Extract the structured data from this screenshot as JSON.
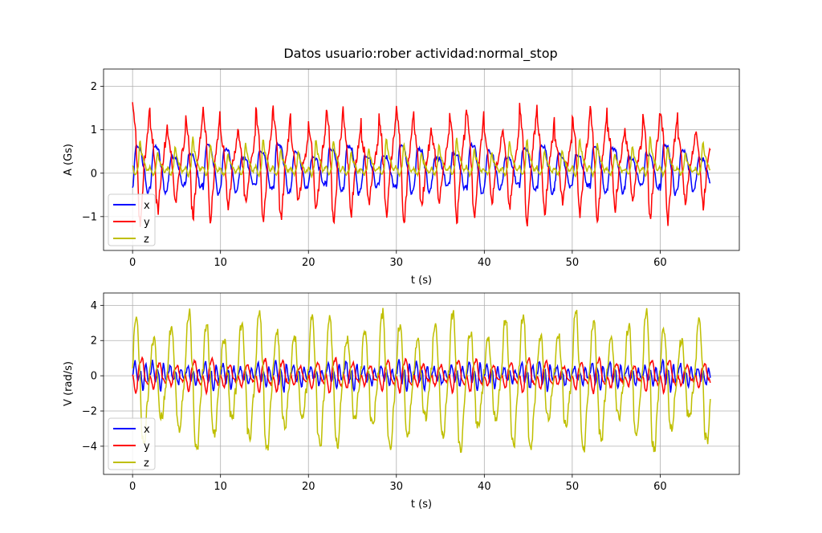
{
  "title": "Datos usuario:rober actividad:normal_stop",
  "colors": {
    "x": "#0000ff",
    "y": "#ff0000",
    "z": "#bfbf00",
    "grid": "#b0b0b0"
  },
  "chart_data": [
    {
      "type": "line",
      "title": "Datos usuario:rober actividad:normal_stop",
      "xlabel": "t (s)",
      "ylabel": "A (Gs)",
      "xlim": [
        -3.3,
        69.0
      ],
      "ylim": [
        -1.78,
        2.4
      ],
      "xticks": [
        0,
        10,
        20,
        30,
        40,
        50,
        60
      ],
      "yticks": [
        -1,
        0,
        1,
        2
      ],
      "grid": true,
      "legend": "lower-left",
      "t_range": [
        0,
        65.7
      ],
      "period_s": 2.0,
      "series": [
        {
          "name": "x",
          "color": "#0000ff",
          "description_range": [
            -0.55,
            0.95
          ],
          "control": [
            [
              0,
              -0.35
            ],
            [
              0.4,
              0.6
            ],
            [
              0.9,
              0.55
            ],
            [
              1.3,
              0.1
            ],
            [
              1.7,
              -0.45
            ],
            [
              2.0,
              -0.35
            ]
          ]
        },
        {
          "name": "y",
          "color": "#ff0000",
          "description_range": [
            -1.3,
            2.17
          ],
          "control": [
            [
              0,
              1.4
            ],
            [
              0.3,
              0.95
            ],
            [
              0.55,
              0.15
            ],
            [
              0.75,
              -0.85
            ],
            [
              0.9,
              -1.1
            ],
            [
              1.1,
              -0.5
            ],
            [
              1.4,
              0.3
            ],
            [
              1.7,
              0.8
            ],
            [
              2.0,
              1.4
            ]
          ]
        },
        {
          "name": "z",
          "color": "#bfbf00",
          "description_range": [
            -0.2,
            0.9
          ],
          "control": [
            [
              0,
              0.15
            ],
            [
              0.35,
              -0.05
            ],
            [
              0.6,
              0.1
            ],
            [
              0.85,
              0.75
            ],
            [
              1.05,
              0.45
            ],
            [
              1.35,
              0.25
            ],
            [
              1.65,
              0.05
            ],
            [
              2.0,
              0.15
            ]
          ]
        }
      ]
    },
    {
      "type": "line",
      "title": "",
      "xlabel": "t (s)",
      "ylabel": "V (rad/s)",
      "xlim": [
        -3.3,
        69.0
      ],
      "ylim": [
        -5.6,
        4.7
      ],
      "xticks": [
        0,
        10,
        20,
        30,
        40,
        50,
        60
      ],
      "yticks": [
        -4,
        -2,
        0,
        2,
        4
      ],
      "grid": true,
      "legend": "lower-left",
      "t_range": [
        0,
        65.7
      ],
      "period_s": 2.0,
      "series": [
        {
          "name": "x",
          "color": "#0000ff",
          "description_range": [
            -1.7,
            2.2
          ],
          "control": [
            [
              0,
              0.1
            ],
            [
              0.3,
              0.8
            ],
            [
              0.6,
              -0.4
            ],
            [
              0.9,
              0.3
            ],
            [
              1.2,
              -0.8
            ],
            [
              1.5,
              0.6
            ],
            [
              1.8,
              -0.3
            ],
            [
              2.0,
              0.1
            ]
          ]
        },
        {
          "name": "y",
          "color": "#ff0000",
          "description_range": [
            -1.4,
            1.3
          ],
          "control": [
            [
              0,
              0.0
            ],
            [
              0.4,
              -0.9
            ],
            [
              0.8,
              0.6
            ],
            [
              1.1,
              0.9
            ],
            [
              1.5,
              -0.3
            ],
            [
              1.8,
              -0.5
            ],
            [
              2.0,
              0.0
            ]
          ]
        },
        {
          "name": "z",
          "color": "#bfbf00",
          "description_range": [
            -4.6,
            4.2
          ],
          "control": [
            [
              0,
              0.5
            ],
            [
              0.25,
              3.0
            ],
            [
              0.5,
              3.3
            ],
            [
              0.8,
              0.5
            ],
            [
              1.1,
              -3.5
            ],
            [
              1.4,
              -3.9
            ],
            [
              1.7,
              -1.5
            ],
            [
              2.0,
              0.5
            ]
          ]
        }
      ]
    }
  ]
}
